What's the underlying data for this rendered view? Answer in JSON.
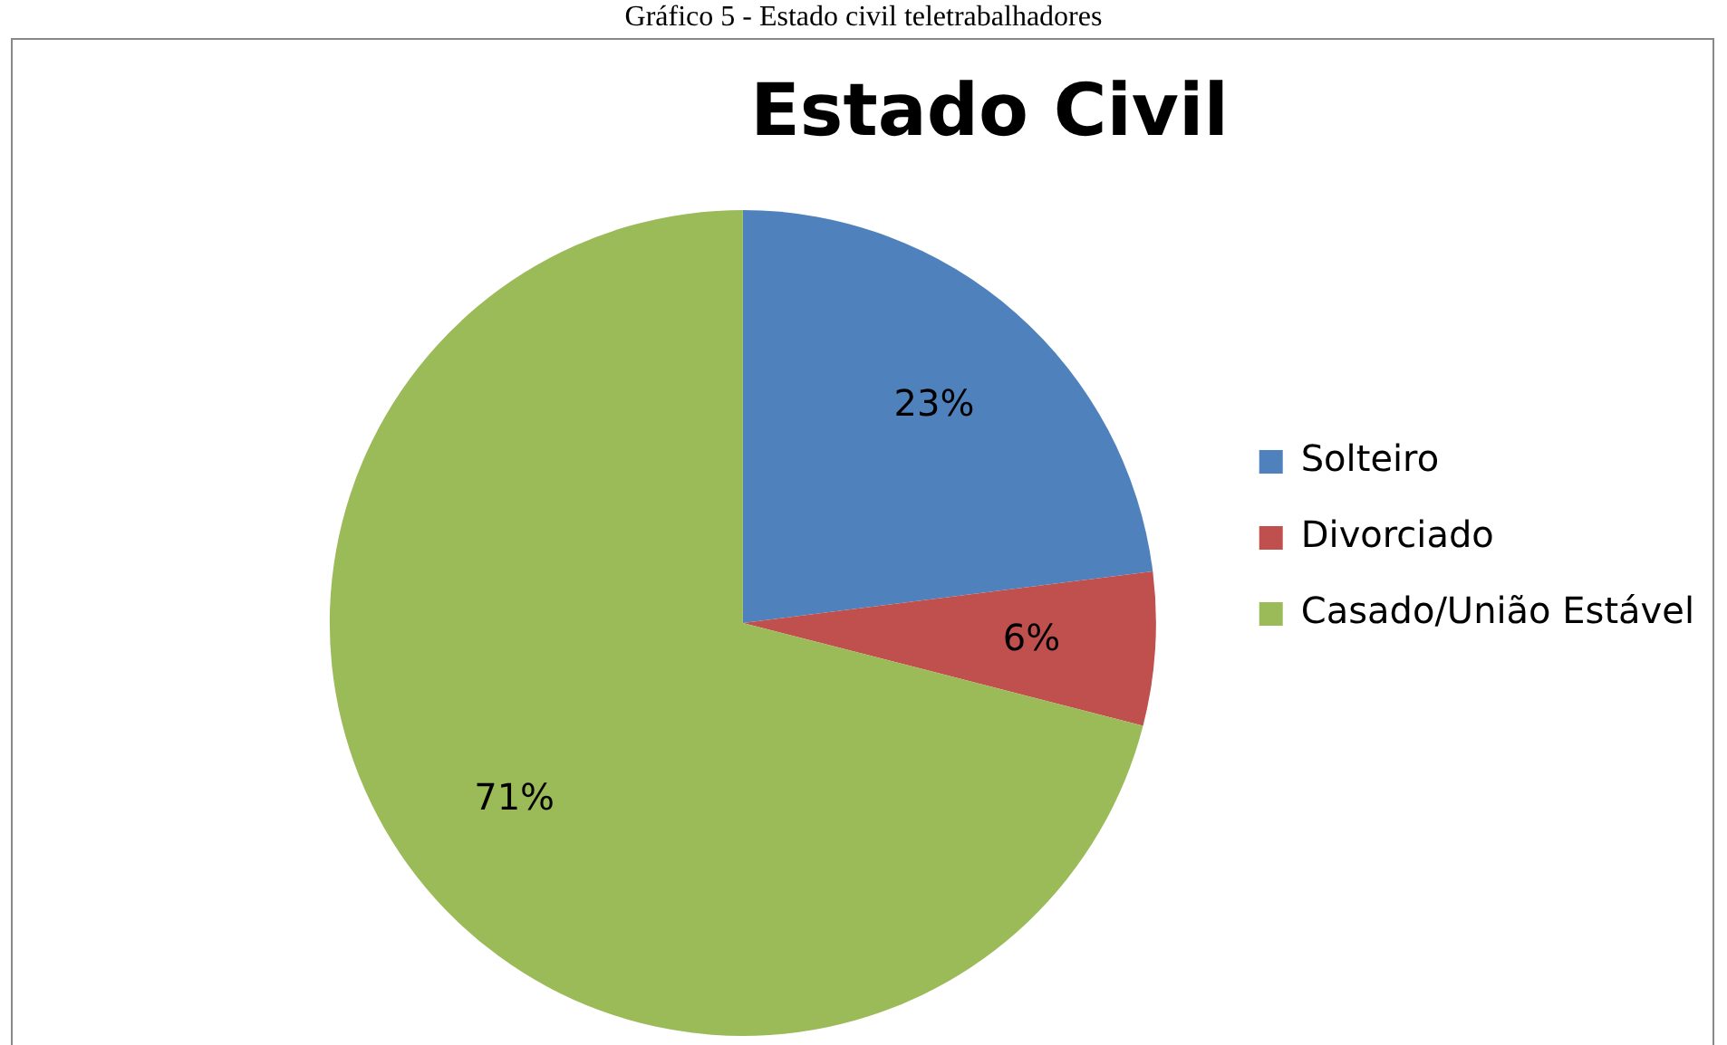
{
  "chart_data": {
    "type": "pie",
    "title": "Estado Civil",
    "annotations": [
      "Gráfico 5 - Estado civil teletrabalhadores"
    ],
    "categories": [
      "Solteiro",
      "Divorciado",
      "Casado/União Estável"
    ],
    "values": [
      23,
      6,
      71
    ],
    "colors": [
      "#4f81bd",
      "#c0504d",
      "#9bbb59"
    ],
    "value_labels": [
      "23%",
      "6%",
      "71%"
    ],
    "legend": "right"
  }
}
